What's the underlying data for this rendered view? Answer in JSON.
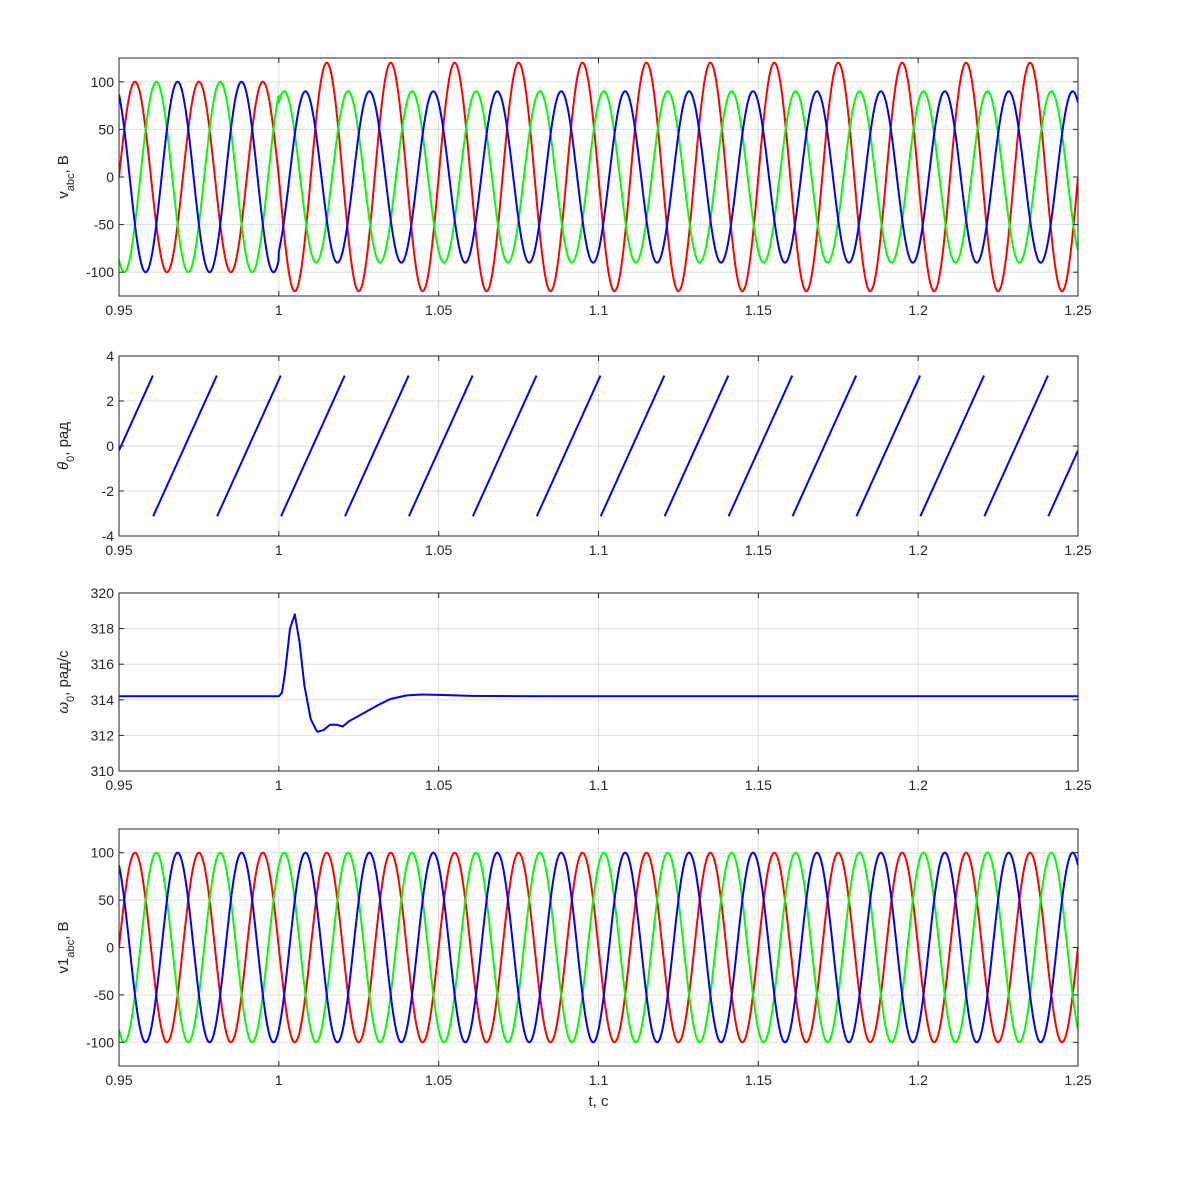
{
  "chart_data": [
    {
      "type": "line",
      "ylabel": {
        "main": "v",
        "sub": "abc",
        "suffix": ", В"
      },
      "xlim": [
        0.95,
        1.25
      ],
      "ylim": [
        -125,
        125
      ],
      "xticks": [
        0.95,
        1,
        1.05,
        1.1,
        1.15,
        1.2,
        1.25
      ],
      "xtick_labels": [
        "0.95",
        "1",
        "1.05",
        "1.1",
        "1.15",
        "1.2",
        "1.25"
      ],
      "yticks": [
        -100,
        -50,
        0,
        50,
        100
      ],
      "ytick_labels": [
        "-100",
        "-50",
        "0",
        "50",
        "100"
      ],
      "grid": true,
      "series": [
        {
          "color": "#ff0000",
          "frequency_hz": 50,
          "phase_deg": 180,
          "amplitude_before": 100,
          "amplitude_after": 120
        },
        {
          "color": "#00ff00",
          "frequency_hz": 50,
          "phase_deg": 60,
          "amplitude_before": 100,
          "amplitude_after": 90
        },
        {
          "color": "#0000ff",
          "frequency_hz": 50,
          "phase_deg": -60,
          "amplitude_before": 100,
          "amplitude_after": 90
        }
      ],
      "event_time": 1.0
    },
    {
      "type": "line",
      "ylabel": {
        "main": "θ",
        "sub": "0",
        "suffix": ", рад"
      },
      "xlim": [
        0.95,
        1.25
      ],
      "ylim": [
        -4,
        4
      ],
      "xticks": [
        0.95,
        1,
        1.05,
        1.1,
        1.15,
        1.2,
        1.25
      ],
      "xtick_labels": [
        "0.95",
        "1",
        "1.05",
        "1.1",
        "1.15",
        "1.2",
        "1.25"
      ],
      "yticks": [
        -4,
        -2,
        0,
        2,
        4
      ],
      "ytick_labels": [
        "-4",
        "-2",
        "0",
        "2",
        "4"
      ],
      "grid": true,
      "series": [
        {
          "color": "#0000ff",
          "frequency_hz": 50,
          "wrap_range": [
            -3.1416,
            3.1416
          ],
          "value_at_start": -0.2
        }
      ]
    },
    {
      "type": "line",
      "ylabel": {
        "main": "ω",
        "sub": "0",
        "suffix": ", рад/с"
      },
      "xlim": [
        0.95,
        1.25
      ],
      "ylim": [
        310,
        320
      ],
      "xticks": [
        0.95,
        1,
        1.05,
        1.1,
        1.15,
        1.2,
        1.25
      ],
      "xtick_labels": [
        "0.95",
        "1",
        "1.05",
        "1.1",
        "1.15",
        "1.2",
        "1.25"
      ],
      "yticks": [
        310,
        312,
        314,
        316,
        318,
        320
      ],
      "ytick_labels": [
        "310",
        "312",
        "314",
        "316",
        "318",
        "320"
      ],
      "grid": true,
      "series": [
        {
          "color": "#0000ff",
          "x": [
            0.95,
            1.0,
            1.001,
            1.002,
            1.0035,
            1.005,
            1.0065,
            1.008,
            1.01,
            1.012,
            1.014,
            1.016,
            1.018,
            1.02,
            1.022,
            1.025,
            1.028,
            1.031,
            1.035,
            1.04,
            1.045,
            1.05,
            1.06,
            1.08,
            1.25
          ],
          "y": [
            314.2,
            314.2,
            314.4,
            315.6,
            318.0,
            318.8,
            317.2,
            314.8,
            312.9,
            312.2,
            312.3,
            312.6,
            312.6,
            312.5,
            312.8,
            313.1,
            313.4,
            313.7,
            314.05,
            314.25,
            314.3,
            314.28,
            314.22,
            314.2,
            314.2
          ]
        }
      ]
    },
    {
      "type": "line",
      "ylabel": {
        "main": "v1",
        "sub": "abc",
        "suffix": ", В"
      },
      "xlabel": "t, c",
      "xlim": [
        0.95,
        1.25
      ],
      "ylim": [
        -125,
        125
      ],
      "xticks": [
        0.95,
        1,
        1.05,
        1.1,
        1.15,
        1.2,
        1.25
      ],
      "xtick_labels": [
        "0.95",
        "1",
        "1.05",
        "1.1",
        "1.15",
        "1.2",
        "1.25"
      ],
      "yticks": [
        -100,
        -50,
        0,
        50,
        100
      ],
      "ytick_labels": [
        "-100",
        "-50",
        "0",
        "50",
        "100"
      ],
      "grid": true,
      "series": [
        {
          "color": "#ff0000",
          "frequency_hz": 50,
          "phase_deg": 180,
          "amplitude_before": 100,
          "amplitude_after": 100
        },
        {
          "color": "#00ff00",
          "frequency_hz": 50,
          "phase_deg": 60,
          "amplitude_before": 100,
          "amplitude_after": 100
        },
        {
          "color": "#0000ff",
          "frequency_hz": 50,
          "phase_deg": -60,
          "amplitude_before": 100,
          "amplitude_after": 100
        }
      ],
      "event_time": 1.0
    }
  ]
}
